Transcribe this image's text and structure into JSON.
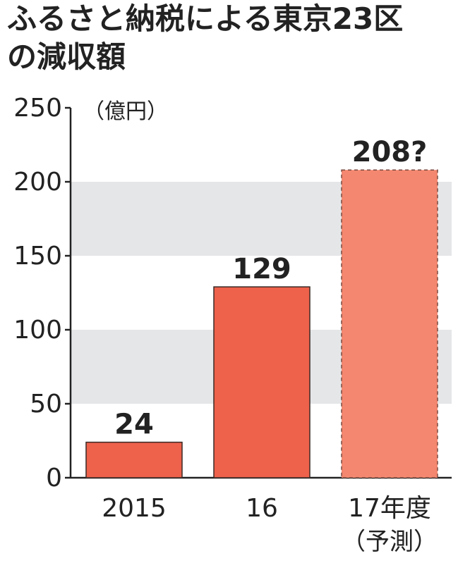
{
  "title_lines": [
    "ふるさと納税による東京23区",
    "の減収額"
  ],
  "chart_data": {
    "type": "bar",
    "title": "ふるさと納税による東京23区の減収額",
    "unit": "（億円）",
    "categories": [
      "2015",
      "16",
      "17年度"
    ],
    "category_sublabels": [
      "",
      "",
      "（予測）"
    ],
    "values": [
      24,
      129,
      208
    ],
    "value_labels": [
      "24",
      "129",
      "208?"
    ],
    "estimated": [
      false,
      false,
      true
    ],
    "yticks": [
      0,
      50,
      100,
      150,
      200,
      250
    ],
    "ylim": [
      0,
      250
    ],
    "grid": "alternating bands",
    "colors": {
      "bar": "#ee614b",
      "bar_estimated": "#f4876f",
      "band": "#e5e6e8",
      "text": "#222222"
    }
  }
}
